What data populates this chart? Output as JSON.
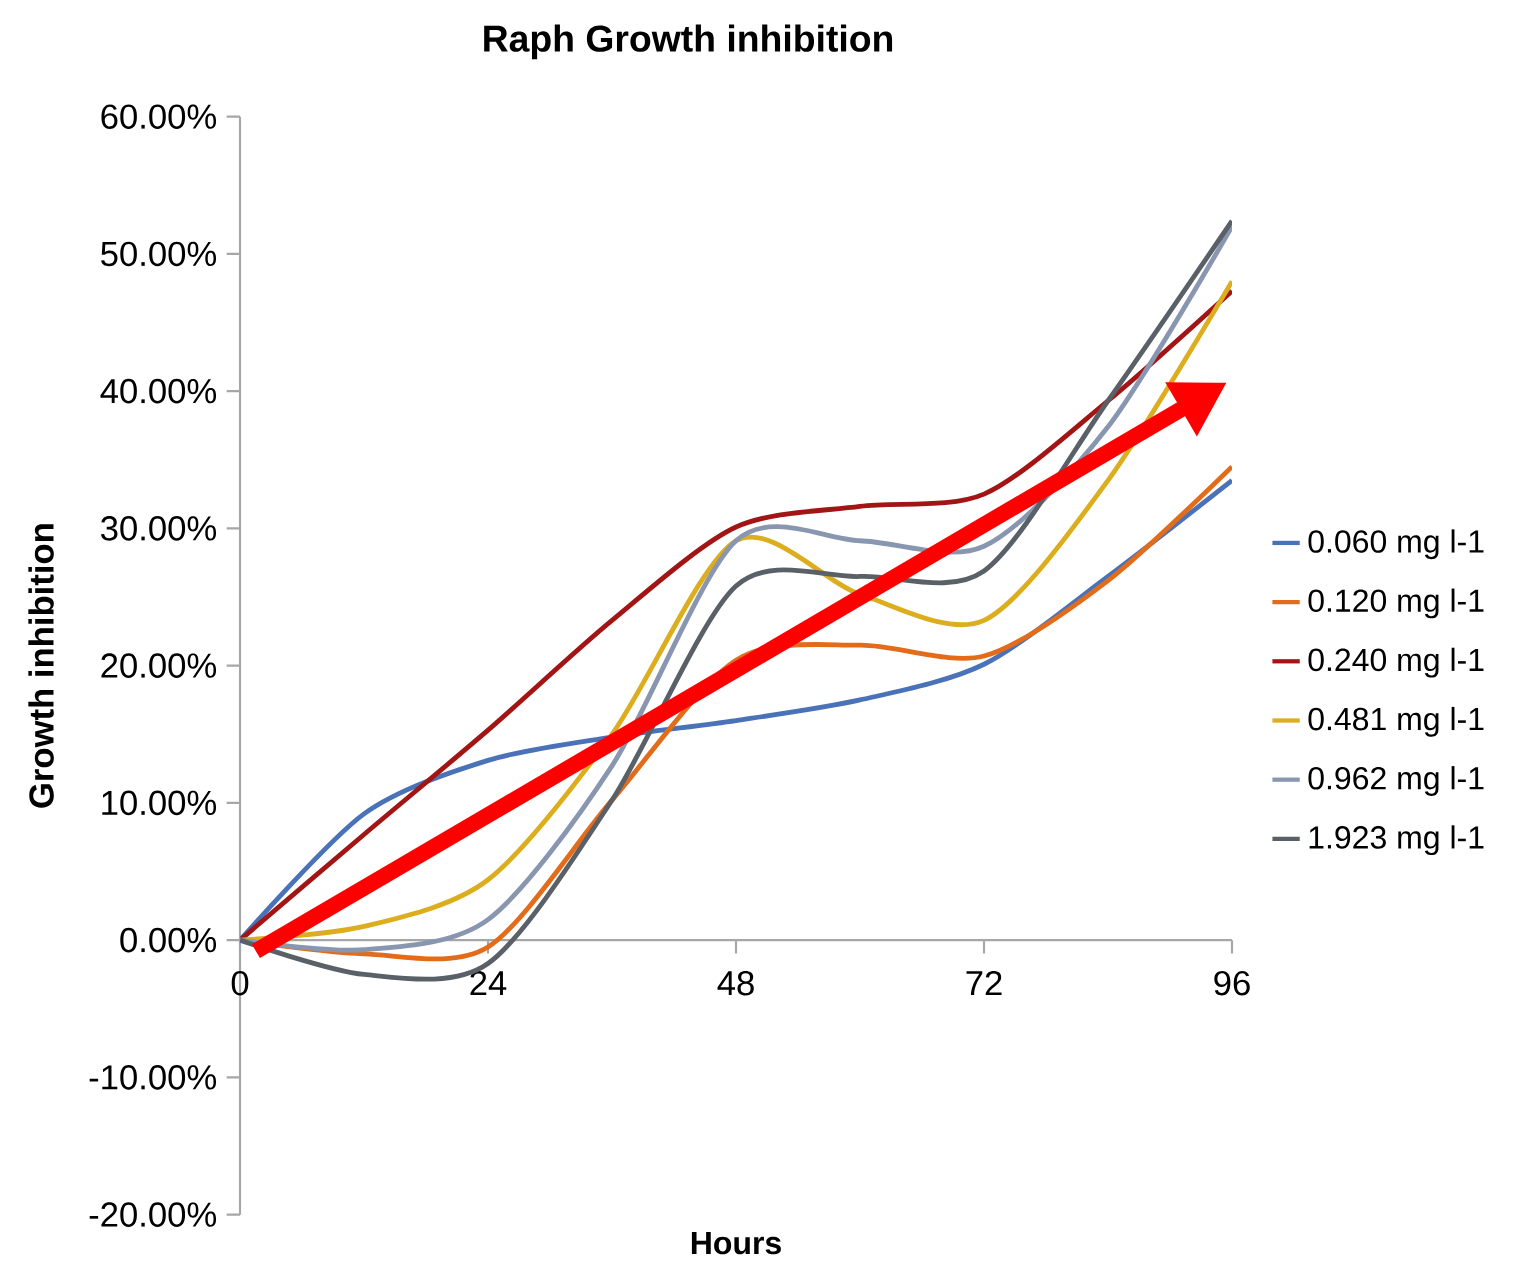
{
  "chart_data": {
    "type": "line",
    "title": "Raph Growth inhibition",
    "xlabel": "Hours",
    "ylabel": "Growth inhibition",
    "x": [
      0,
      12,
      24,
      36,
      48,
      60,
      72,
      84,
      96
    ],
    "series": [
      {
        "name": "0.060 mg l-1",
        "color": "#4a72b8",
        "values": [
          0,
          9.2,
          13.1,
          14.8,
          16,
          17.5,
          20.1,
          26.5,
          33.5
        ]
      },
      {
        "name": "0.120 mg l-1",
        "color": "#e36c1a",
        "values": [
          0,
          -1,
          -0.5,
          10.2,
          20.4,
          21.5,
          20.7,
          26.2,
          34.5
        ]
      },
      {
        "name": "0.240 mg l-1",
        "color": "#a31515",
        "values": [
          0,
          7.7,
          15.3,
          23.3,
          30.1,
          31.6,
          32.5,
          39.3,
          47.3
        ]
      },
      {
        "name": "0.481 mg l-1",
        "color": "#dcae1d",
        "values": [
          0,
          1,
          4.4,
          15,
          29.1,
          25.2,
          23.3,
          33.5,
          48
        ]
      },
      {
        "name": "0.962 mg l-1",
        "color": "#8896b0",
        "values": [
          0,
          -0.7,
          1.5,
          12.7,
          29.1,
          29.1,
          28.7,
          37.4,
          52
        ]
      },
      {
        "name": "1.923 mg l-1",
        "color": "#5a6068",
        "values": [
          0,
          -2.5,
          -1.7,
          10.2,
          25.8,
          26.5,
          26.9,
          39.3,
          52.4
        ]
      }
    ],
    "xlim": [
      0,
      96
    ],
    "xticks": [
      0,
      24,
      48,
      72,
      96
    ],
    "ylim": [
      -20,
      60
    ],
    "yticks": [
      {
        "value": -20,
        "label": "-20.00%"
      },
      {
        "value": -10,
        "label": "-10.00%"
      },
      {
        "value": 0,
        "label": "0.00%"
      },
      {
        "value": 10,
        "label": "10.00%"
      },
      {
        "value": 20,
        "label": "20.00%"
      },
      {
        "value": 30,
        "label": "30.00%"
      },
      {
        "value": 40,
        "label": "40.00%"
      },
      {
        "value": 50,
        "label": "50.00%"
      },
      {
        "value": 60,
        "label": "60.00%"
      }
    ],
    "legend": "right",
    "grid": false
  }
}
